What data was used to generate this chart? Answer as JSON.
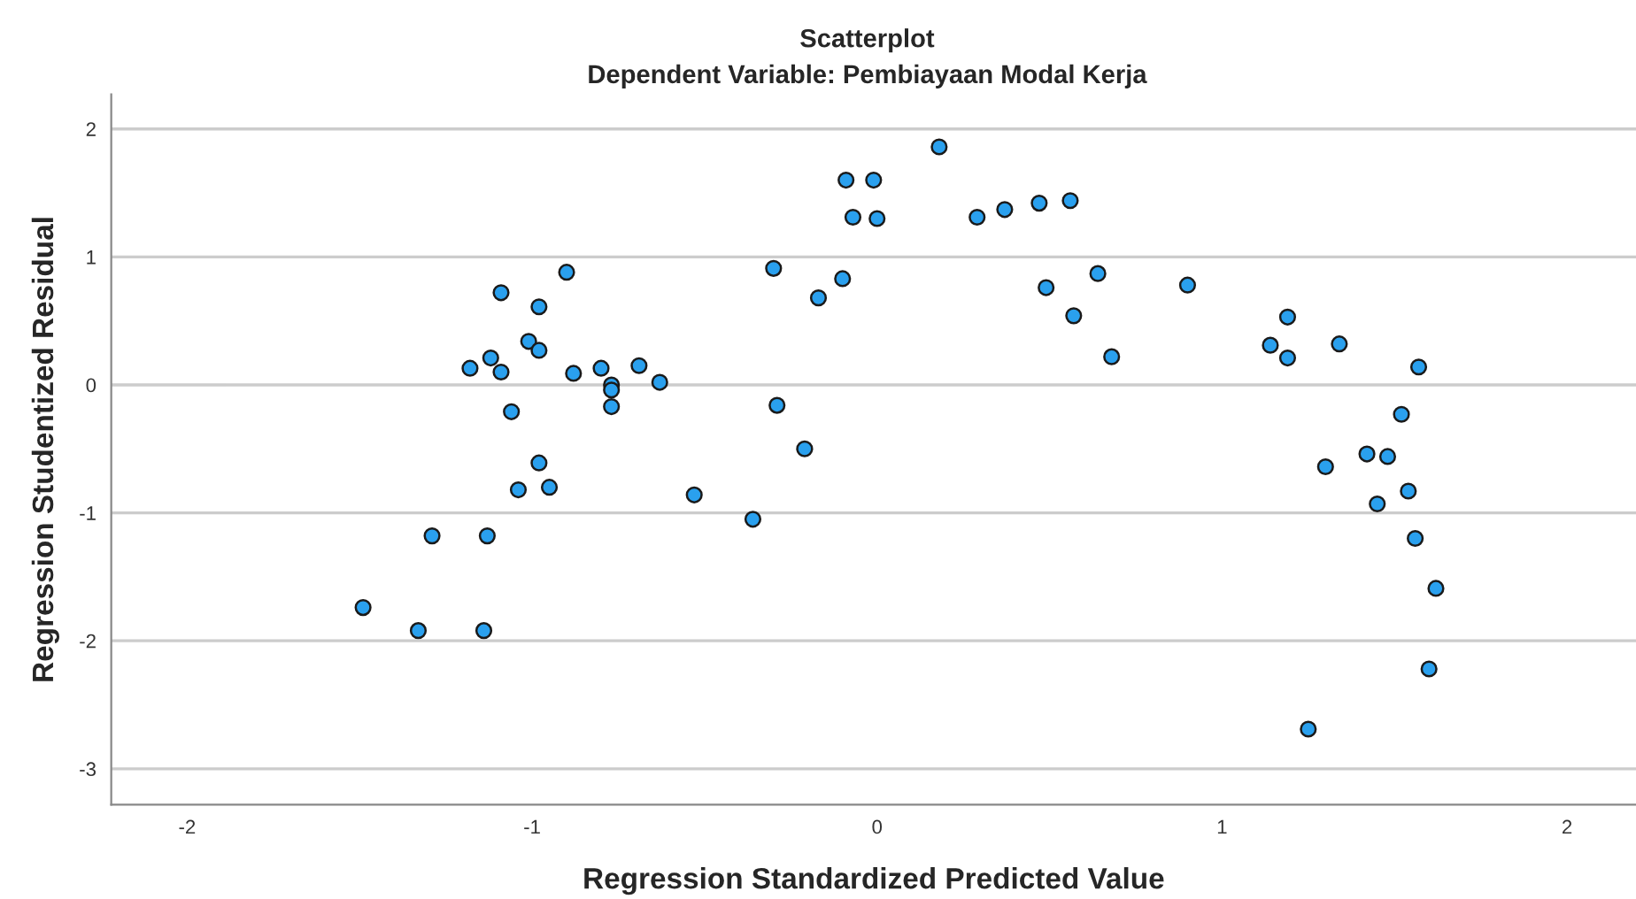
{
  "chart_data": {
    "type": "scatter",
    "title": "Scatterplot",
    "subtitle": "Dependent Variable: Pembiayaan Modal Kerja",
    "xlabel": "Regression Standardized Predicted Value",
    "ylabel": "Regression Studentized Residual",
    "x": [
      -1.49,
      -1.33,
      -1.29,
      -1.14,
      -1.13,
      -1.18,
      -1.12,
      -1.09,
      -1.09,
      -1.06,
      -1.04,
      -1.01,
      -0.98,
      -0.98,
      -0.98,
      -0.95,
      -0.9,
      -0.88,
      -0.8,
      -0.77,
      -0.77,
      -0.77,
      -0.69,
      -0.63,
      -0.53,
      -0.36,
      -0.3,
      -0.29,
      -0.21,
      -0.17,
      -0.1,
      -0.09,
      -0.01,
      -0.07,
      0.0,
      0.18,
      0.29,
      0.37,
      0.47,
      0.56,
      0.49,
      0.64,
      0.57,
      0.68,
      0.9,
      1.14,
      1.19,
      1.19,
      1.34,
      1.57,
      1.52,
      1.3,
      1.42,
      1.48,
      1.54,
      1.45,
      1.56,
      1.62,
      1.6,
      1.25
    ],
    "values": [
      -1.74,
      -1.92,
      -1.18,
      -1.92,
      -1.18,
      0.13,
      0.21,
      0.72,
      0.1,
      -0.21,
      -0.82,
      0.34,
      0.61,
      0.27,
      -0.61,
      -0.8,
      0.88,
      0.09,
      0.13,
      0.0,
      -0.04,
      -0.17,
      0.15,
      0.02,
      -0.86,
      -1.05,
      0.91,
      -0.16,
      -0.5,
      0.68,
      0.83,
      1.6,
      1.6,
      1.31,
      1.3,
      1.86,
      1.31,
      1.37,
      1.42,
      1.44,
      0.76,
      0.87,
      0.54,
      0.22,
      0.78,
      0.31,
      0.53,
      0.21,
      0.32,
      0.14,
      -0.23,
      -0.64,
      -0.54,
      -0.56,
      -0.83,
      -0.93,
      -1.2,
      -1.59,
      -2.22,
      -2.69
    ],
    "color": "#2aa0ee",
    "marker": "circle",
    "xlim": [
      -2.22,
      2.2
    ],
    "ylim": [
      -3.28,
      2.27
    ],
    "xticks": [
      -2,
      -1,
      0,
      1,
      2
    ],
    "yticks": [
      -3,
      -2,
      -1,
      0,
      1,
      2
    ],
    "grid": "y"
  }
}
